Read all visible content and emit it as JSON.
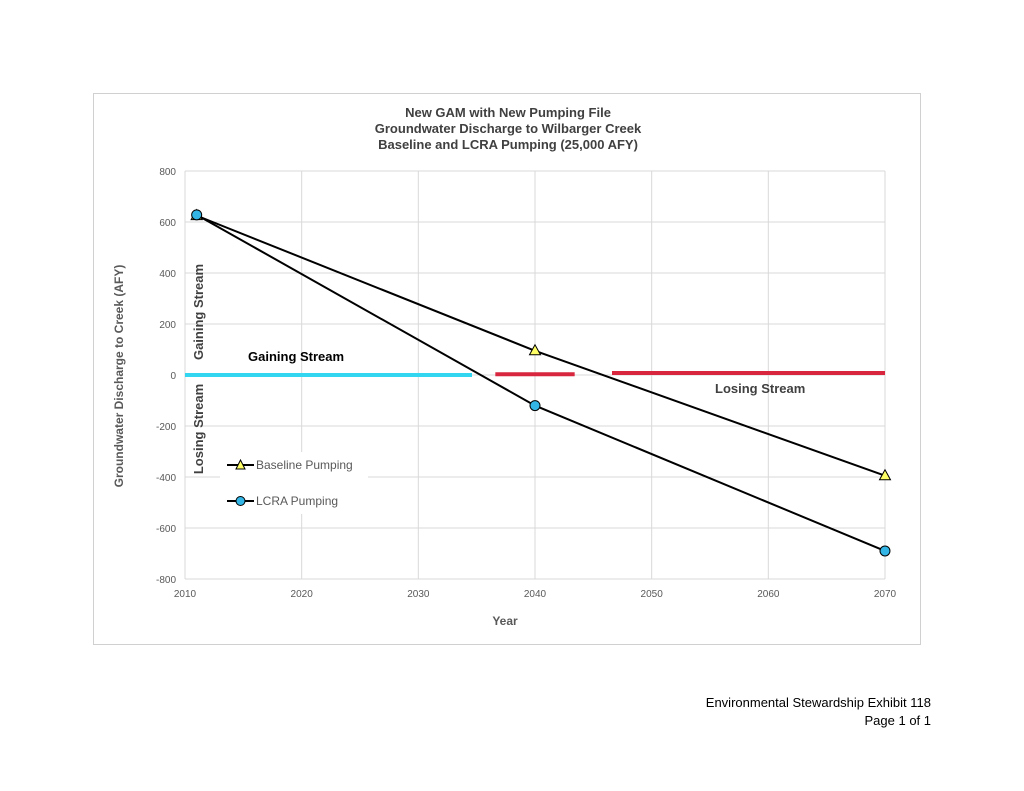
{
  "chart_data": {
    "type": "line",
    "title": [
      "New GAM with New Pumping File",
      "Groundwater Discharge to Wilbarger Creek",
      "Baseline and LCRA Pumping (25,000 AFY)"
    ],
    "xlabel": "Year",
    "ylabel": "Groundwater Discharge to Creek (AFY)",
    "xlim": [
      2010,
      2070
    ],
    "ylim": [
      -800,
      800
    ],
    "x_ticks": [
      "2010",
      "2020",
      "2030",
      "2040",
      "2050",
      "2060",
      "2070"
    ],
    "y_ticks": [
      "800",
      "600",
      "400",
      "200",
      "0",
      "-200",
      "-400",
      "-600",
      "-800"
    ],
    "x_tick_values": [
      2010,
      2020,
      2030,
      2040,
      2050,
      2060,
      2070
    ],
    "y_tick_values": [
      800,
      600,
      400,
      200,
      0,
      -200,
      -400,
      -600,
      -800
    ],
    "grid": true,
    "legend_position": "bottom-left",
    "series": [
      {
        "name": "Baseline Pumping",
        "marker": "triangle",
        "marker_color": "#FFFF66",
        "line_color": "#000000",
        "x": [
          2011,
          2040,
          2070
        ],
        "y": [
          625,
          95,
          -395
        ]
      },
      {
        "name": "LCRA Pumping",
        "marker": "circle",
        "marker_color": "#33B5E5",
        "line_color": "#000000",
        "x": [
          2011,
          2040,
          2070
        ],
        "y": [
          628,
          -120,
          -690
        ]
      }
    ],
    "segments": [
      {
        "color": "#33D6F0",
        "x": [
          2010,
          2034.6
        ],
        "y": [
          0,
          0
        ]
      },
      {
        "color": "#D7263D",
        "x": [
          2036.6,
          2043.4
        ],
        "y": [
          3,
          3
        ]
      },
      {
        "color": "#D7263D",
        "x": [
          2046.6,
          2070
        ],
        "y": [
          8,
          8
        ]
      }
    ],
    "annotations": {
      "gaining_stream": "Gaining Stream",
      "losing_stream": "Losing Stream",
      "gaining_vertical": "Gaining Stream",
      "losing_vertical": "Losing Stream"
    }
  },
  "footer": {
    "exhibit": "Environmental Stewardship Exhibit 118",
    "page": "Page 1 of 1"
  }
}
